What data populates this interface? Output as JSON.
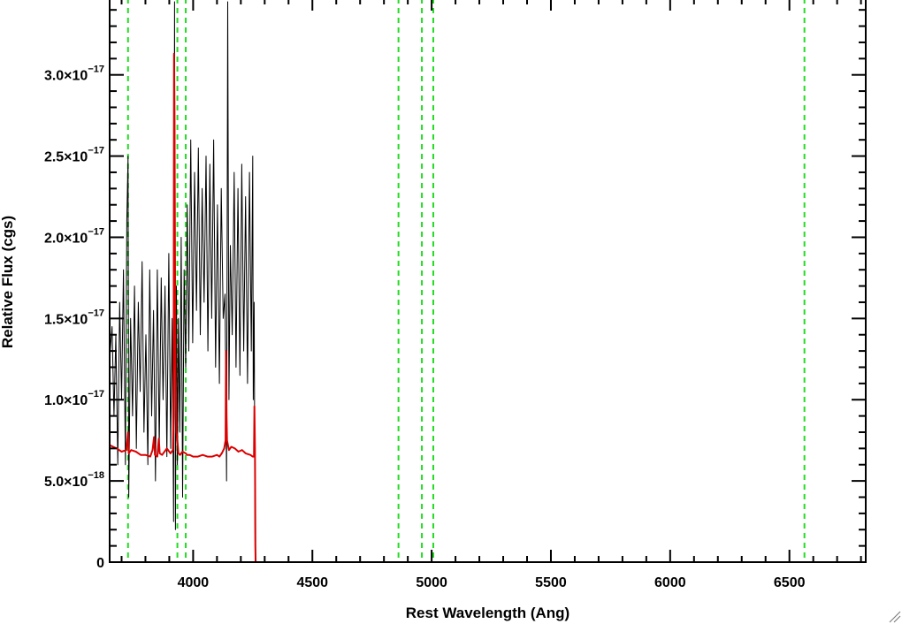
{
  "chart_data": {
    "type": "line",
    "xlabel": "Rest Wavelength (Ang)",
    "ylabel": "Relative Flux (cgs)",
    "xlim": [
      3650,
      6820
    ],
    "ylim": [
      0,
      3.45e-17
    ],
    "x_ticks": [
      {
        "value": 4000,
        "label": "4000"
      },
      {
        "value": 4500,
        "label": "4500"
      },
      {
        "value": 5000,
        "label": "5000"
      },
      {
        "value": 5500,
        "label": "5500"
      },
      {
        "value": 6000,
        "label": "6000"
      },
      {
        "value": 6500,
        "label": "6500"
      }
    ],
    "y_ticks": [
      {
        "value": 0,
        "label": "0",
        "sup": ""
      },
      {
        "value": 5e-18,
        "label": "5.0×10",
        "sup": "−18"
      },
      {
        "value": 1e-17,
        "label": "1.0×10",
        "sup": "−17"
      },
      {
        "value": 1.5e-17,
        "label": "1.5×10",
        "sup": "−17"
      },
      {
        "value": 2e-17,
        "label": "2.0×10",
        "sup": "−17"
      },
      {
        "value": 2.5e-17,
        "label": "2.5×10",
        "sup": "−17"
      },
      {
        "value": 3e-17,
        "label": "3.0×10",
        "sup": "−17"
      }
    ],
    "reference_lines": [
      3727,
      3934,
      3969,
      4861,
      4959,
      5007,
      6563
    ],
    "series": [
      {
        "color": "#000000",
        "x": [
          3650,
          3660,
          3668,
          3676,
          3684,
          3692,
          3700,
          3708,
          3716,
          3722,
          3727,
          3730,
          3738,
          3746,
          3754,
          3762,
          3770,
          3778,
          3786,
          3794,
          3802,
          3810,
          3818,
          3826,
          3834,
          3842,
          3850,
          3858,
          3866,
          3874,
          3882,
          3890,
          3898,
          3906,
          3912,
          3918,
          3922,
          3926,
          3930,
          3934,
          3938,
          3944,
          3950,
          3956,
          3962,
          3969,
          3975,
          3982,
          3990,
          3998,
          4006,
          4014,
          4022,
          4030,
          4038,
          4046,
          4054,
          4062,
          4070,
          4078,
          4086,
          4094,
          4102,
          4110,
          4118,
          4126,
          4134,
          4140,
          4145,
          4150,
          4156,
          4164,
          4172,
          4180,
          4188,
          4196,
          4204,
          4212,
          4220,
          4228,
          4236,
          4244,
          4250,
          4252,
          4256,
          4260,
          6820
        ],
        "y": [
          1.25e-17,
          1.45e-17,
          9e-18,
          1.4e-17,
          6e-18,
          1.6e-17,
          1e-17,
          1.8e-17,
          6e-18,
          2.1e-17,
          2.5e-17,
          4e-18,
          1.5e-17,
          9e-18,
          1.7e-17,
          7e-18,
          1.6e-17,
          1.05e-17,
          1.85e-17,
          8e-18,
          1.4e-17,
          6e-18,
          1.8e-17,
          9e-18,
          1.55e-17,
          5e-18,
          1.8e-17,
          7e-18,
          1.75e-17,
          1e-17,
          1.7e-17,
          6.5e-18,
          1.9e-17,
          7e-18,
          1.5e-17,
          2.5e-18,
          3.45e-17,
          2e-18,
          1.7e-17,
          6e-18,
          1.5e-17,
          8e-18,
          2e-17,
          4e-18,
          1.8e-17,
          1.2e-17,
          2.2e-17,
          1.3e-17,
          2.6e-17,
          1.35e-17,
          2.4e-17,
          1.55e-17,
          2.55e-17,
          1.4e-17,
          2.3e-17,
          1.6e-17,
          2.5e-17,
          1.3e-17,
          2.45e-17,
          1.5e-17,
          2.6e-17,
          1.2e-17,
          2.2e-17,
          1.1e-17,
          2.3e-17,
          1.5e-17,
          1.65e-17,
          5e-18,
          3.45e-17,
          1e-17,
          1.95e-17,
          1.4e-17,
          2.4e-17,
          1.2e-17,
          2.3e-17,
          1.15e-17,
          2.45e-17,
          1.3e-17,
          2.25e-17,
          1.1e-17,
          2.4e-17,
          1.3e-17,
          2.5e-17,
          1e-17,
          1.6e-17,
          0,
          0
        ]
      },
      {
        "color": "#dd0000",
        "x": [
          3650,
          3680,
          3700,
          3720,
          3727,
          3730,
          3740,
          3760,
          3780,
          3800,
          3820,
          3830,
          3836,
          3840,
          3850,
          3856,
          3860,
          3870,
          3890,
          3905,
          3915,
          3918,
          3920,
          3922,
          3924,
          3926,
          3930,
          3934,
          3938,
          3945,
          3955,
          3969,
          3975,
          3985,
          4000,
          4020,
          4040,
          4060,
          4080,
          4100,
          4110,
          4120,
          4130,
          4136,
          4138,
          4140,
          4142,
          4146,
          4150,
          4160,
          4175,
          4190,
          4205,
          4220,
          4240,
          4250,
          4255,
          4257,
          4259,
          4261,
          4262,
          6820
        ],
        "y": [
          7.2e-18,
          7e-18,
          6.8e-18,
          6.9e-18,
          8e-18,
          6.7e-18,
          6.9e-18,
          6.8e-18,
          6.6e-18,
          6.6e-18,
          6.5e-18,
          6.9e-18,
          7.7e-18,
          6.6e-18,
          6.5e-18,
          7.6e-18,
          6.7e-18,
          6.6e-18,
          7e-18,
          6.7e-18,
          6.9e-18,
          9e-18,
          3.13e-17,
          2.7e-17,
          1.9e-17,
          1.2e-17,
          8e-18,
          7.5e-18,
          6.7e-18,
          6.6e-18,
          6.8e-18,
          6.7e-18,
          6.6e-18,
          6.6e-18,
          6.5e-18,
          6.5e-18,
          6.6e-18,
          6.5e-18,
          6.5e-18,
          6.6e-18,
          6.5e-18,
          6.7e-18,
          7e-18,
          7.5e-18,
          1.3e-17,
          9e-18,
          7.5e-18,
          7.2e-18,
          6.9e-18,
          7.1e-18,
          7e-18,
          6.8e-18,
          6.9e-18,
          6.7e-18,
          6.6e-18,
          6.5e-18,
          6.5e-18,
          9.6e-18,
          7e-18,
          1e-18,
          0,
          0
        ]
      }
    ]
  }
}
